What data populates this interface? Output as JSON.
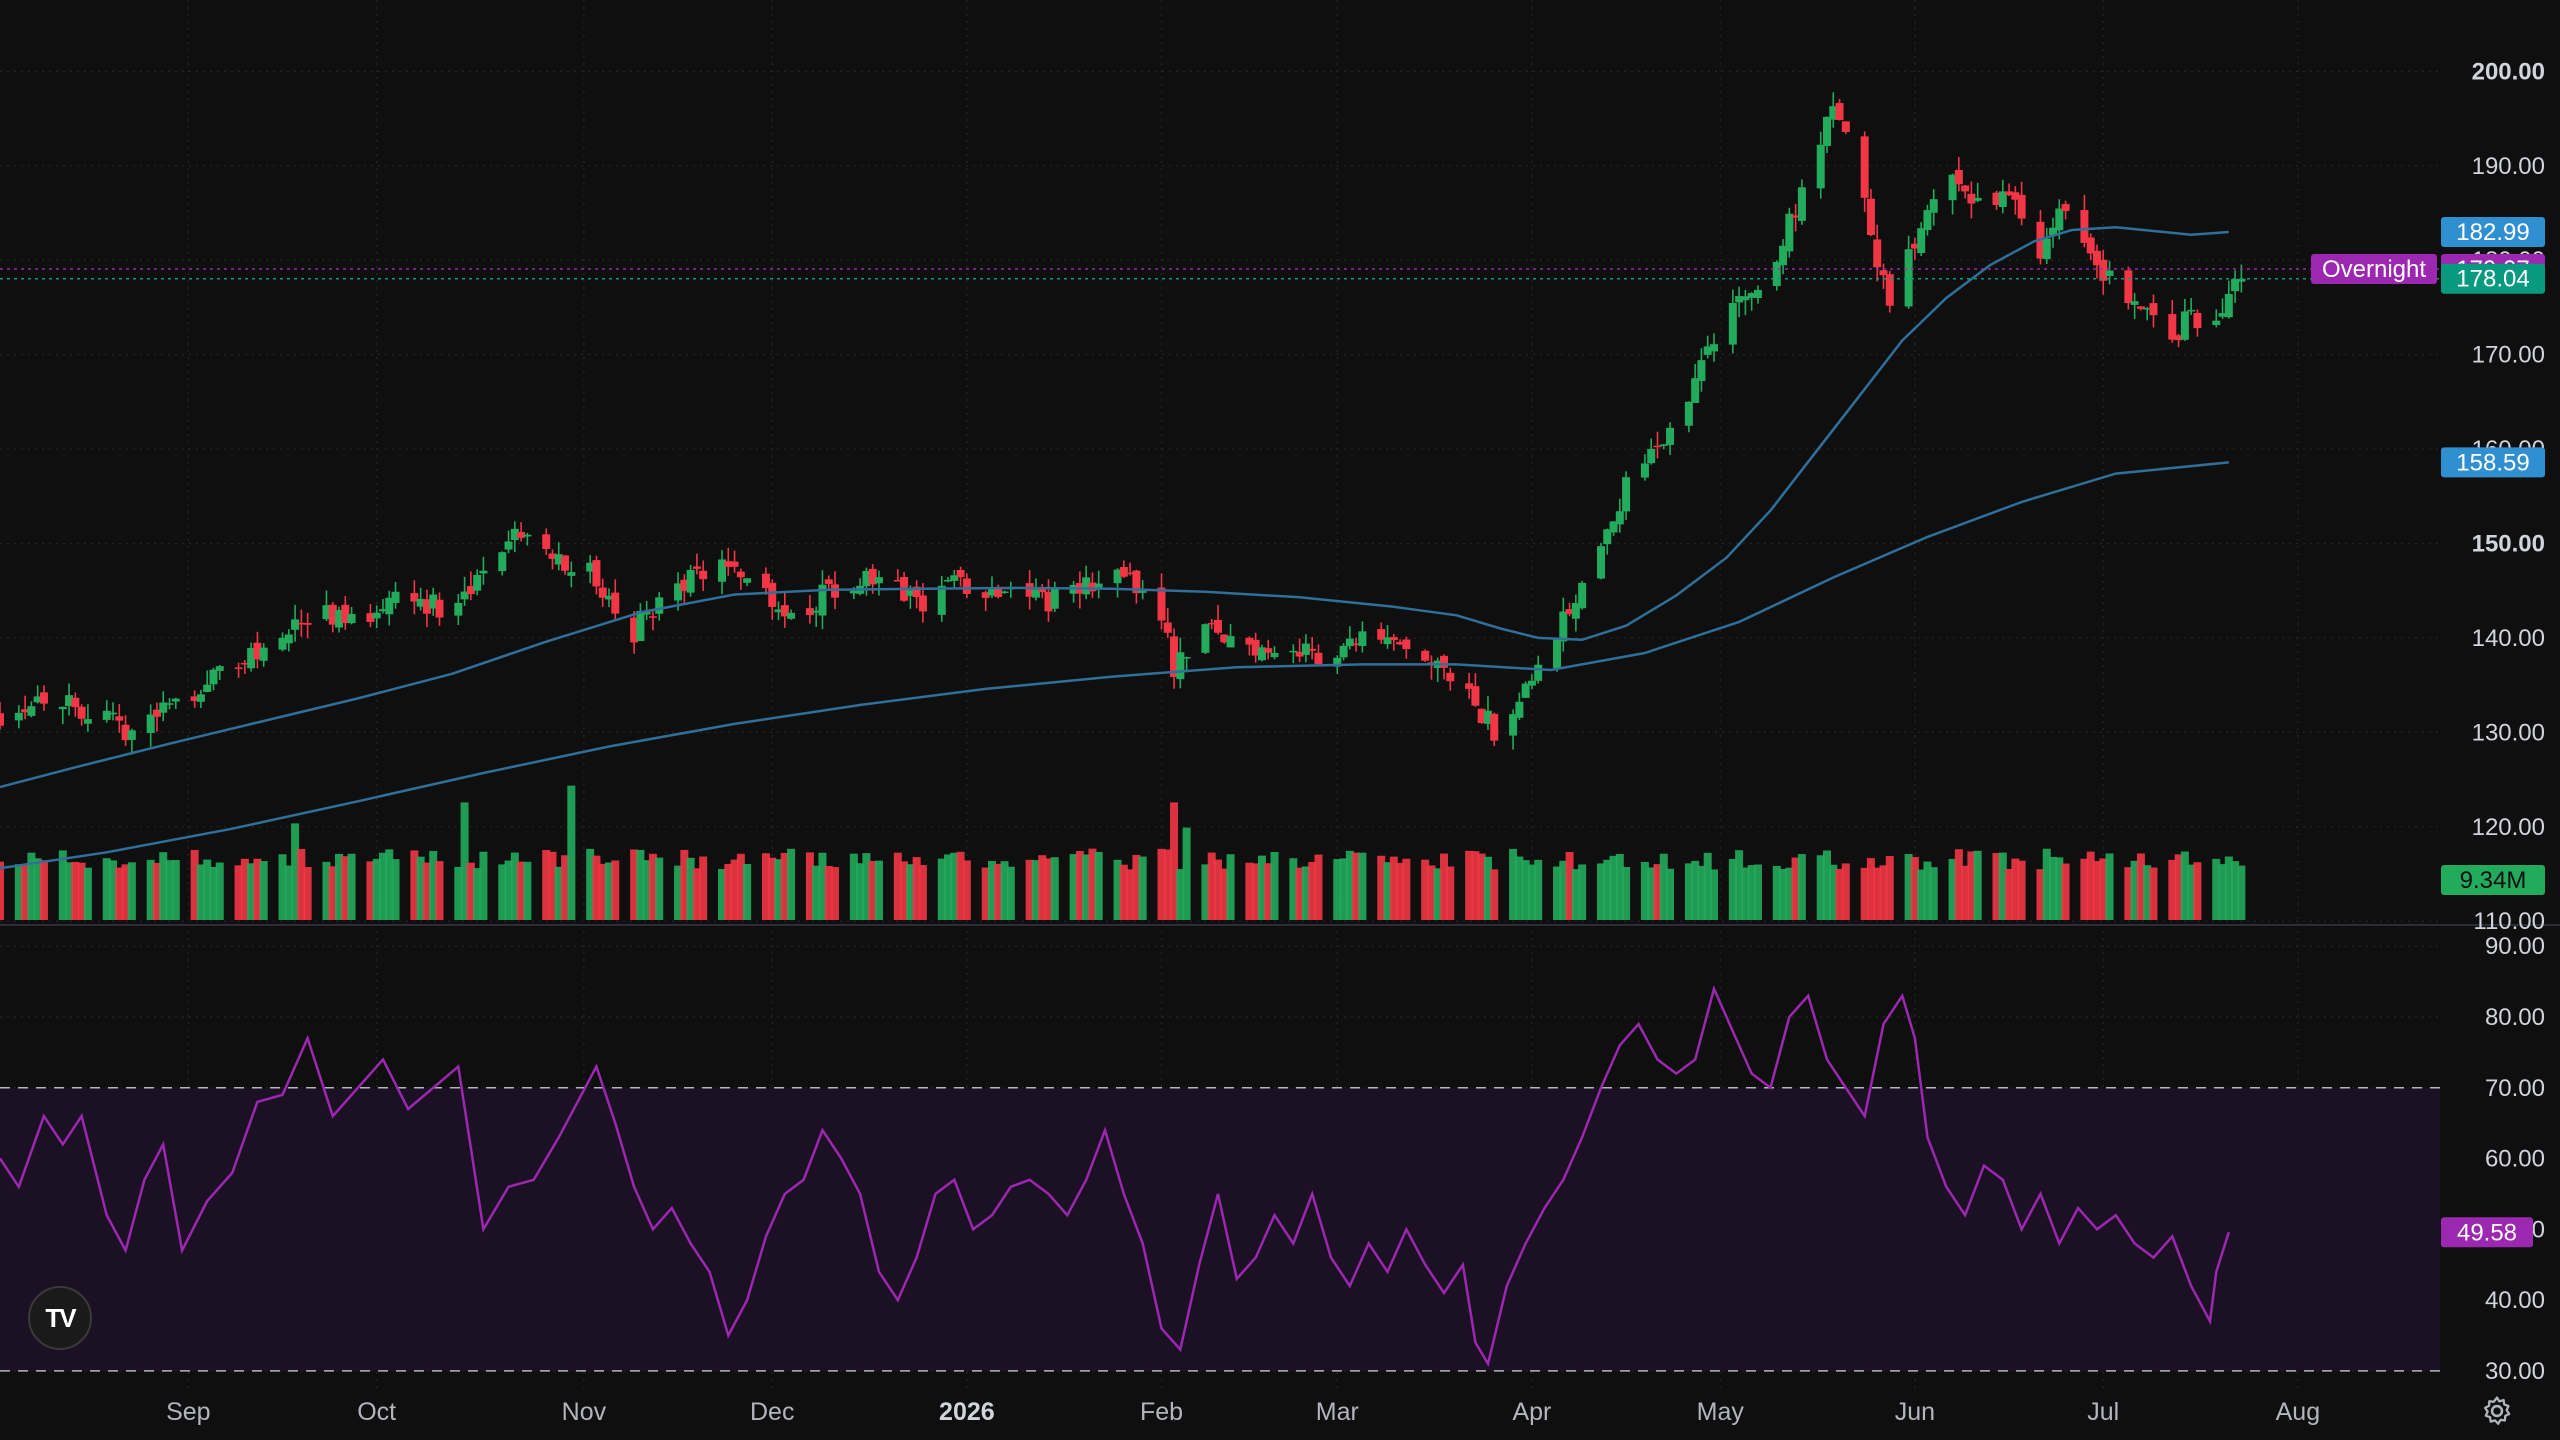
{
  "chart_data": {
    "type": "candlestick",
    "price_axis": {
      "ticks": [
        200,
        190,
        180,
        170,
        160,
        150,
        140,
        130,
        120,
        110
      ],
      "labels": [
        "200.00",
        "190.00",
        "180.00",
        "170.00",
        "160.00",
        "150.00",
        "140.00",
        "130.00",
        "120.00",
        "110.00"
      ],
      "bold": [
        true,
        false,
        false,
        false,
        false,
        true,
        false,
        false,
        false,
        false
      ],
      "range": [
        109.6,
        206.5
      ]
    },
    "rsi_axis": {
      "ticks": [
        90,
        80,
        70,
        60,
        50,
        40,
        30
      ],
      "labels": [
        "90.00",
        "80.00",
        "70.00",
        "60.00",
        "50.00",
        "40.00",
        "30.00"
      ],
      "range": [
        28,
        93
      ],
      "band": [
        30,
        70
      ]
    },
    "time_axis": {
      "labels": [
        {
          "text": "Sep",
          "bold": false,
          "day": 13
        },
        {
          "text": "Oct",
          "bold": false,
          "day": 43
        },
        {
          "text": "Nov",
          "bold": false,
          "day": 76
        },
        {
          "text": "Dec",
          "bold": false,
          "day": 106
        },
        {
          "text": "2026",
          "bold": true,
          "day": 137
        },
        {
          "text": "Feb",
          "bold": false,
          "day": 168
        },
        {
          "text": "Mar",
          "bold": false,
          "day": 196
        },
        {
          "text": "Apr",
          "bold": false,
          "day": 227
        },
        {
          "text": "May",
          "bold": false,
          "day": 257
        },
        {
          "text": "Jun",
          "bold": false,
          "day": 288
        },
        {
          "text": "Jul",
          "bold": false,
          "day": 318
        },
        {
          "text": "Aug",
          "bold": false,
          "day": 349
        }
      ],
      "range": [
        -17,
        371
      ]
    },
    "markers": {
      "ma50": {
        "text": "182.99",
        "value": 182.99,
        "color": "#2f8fd0"
      },
      "overnight_label": {
        "text": "Overnight",
        "color": "#9c27b0"
      },
      "overnight": {
        "text": "179.07",
        "value": 179.07,
        "color": "#9c27b0"
      },
      "last": {
        "text": "178.04",
        "value": 178.04,
        "color": "#089981"
      },
      "ma200": {
        "text": "158.59",
        "value": 158.59,
        "color": "#2f8fd0"
      },
      "volume": {
        "text": "9.34M",
        "color": "#22ab5c"
      },
      "rsi": {
        "text": "49.58",
        "value": 49.58,
        "color": "#9c27b0"
      }
    },
    "anchors": [
      [
        -17,
        132
      ],
      [
        -10,
        134
      ],
      [
        -5,
        133
      ],
      [
        0,
        131
      ],
      [
        5,
        130
      ],
      [
        10,
        133
      ],
      [
        15,
        135
      ],
      [
        20,
        137
      ],
      [
        25,
        139
      ],
      [
        30,
        141
      ],
      [
        35,
        143
      ],
      [
        40,
        141
      ],
      [
        45,
        145
      ],
      [
        50,
        144
      ],
      [
        55,
        143
      ],
      [
        60,
        146
      ],
      [
        63,
        150
      ],
      [
        68,
        152
      ],
      [
        73,
        148
      ],
      [
        77,
        147
      ],
      [
        80,
        144
      ],
      [
        83,
        138
      ],
      [
        85,
        142
      ],
      [
        90,
        145
      ],
      [
        95,
        147
      ],
      [
        100,
        148
      ],
      [
        105,
        145
      ],
      [
        110,
        142
      ],
      [
        115,
        145
      ],
      [
        120,
        146
      ],
      [
        125,
        145
      ],
      [
        130,
        144
      ],
      [
        135,
        146
      ],
      [
        140,
        145
      ],
      [
        145,
        146
      ],
      [
        150,
        144
      ],
      [
        155,
        145
      ],
      [
        160,
        147
      ],
      [
        165,
        145
      ],
      [
        168,
        143
      ],
      [
        170,
        137
      ],
      [
        174,
        141
      ],
      [
        178,
        140
      ],
      [
        183,
        139
      ],
      [
        188,
        139
      ],
      [
        193,
        138
      ],
      [
        198,
        140
      ],
      [
        203,
        139
      ],
      [
        208,
        138
      ],
      [
        213,
        136
      ],
      [
        218,
        133
      ],
      [
        221,
        130
      ],
      [
        224,
        133
      ],
      [
        228,
        138
      ],
      [
        233,
        143
      ],
      [
        238,
        151
      ],
      [
        243,
        157
      ],
      [
        248,
        161
      ],
      [
        252,
        166
      ],
      [
        256,
        172
      ],
      [
        260,
        176
      ],
      [
        264,
        177
      ],
      [
        268,
        184
      ],
      [
        272,
        190
      ],
      [
        275,
        196
      ],
      [
        278,
        193
      ],
      [
        281,
        182
      ],
      [
        284,
        176
      ],
      [
        287,
        180
      ],
      [
        290,
        186
      ],
      [
        293,
        191
      ],
      [
        296,
        188
      ],
      [
        299,
        184
      ],
      [
        302,
        188
      ],
      [
        305,
        184
      ],
      [
        308,
        180
      ],
      [
        311,
        186
      ],
      [
        314,
        182
      ],
      [
        317,
        180
      ],
      [
        320,
        177
      ],
      [
        323,
        176
      ],
      [
        326,
        175
      ],
      [
        329,
        172
      ],
      [
        332,
        174
      ],
      [
        335,
        171
      ],
      [
        336,
        174
      ],
      [
        338,
        176
      ],
      [
        340,
        178
      ]
    ],
    "ma50_points": [
      [
        -17,
        124.2
      ],
      [
        -5,
        126.3
      ],
      [
        10,
        128.8
      ],
      [
        25,
        131.2
      ],
      [
        40,
        133.6
      ],
      [
        55,
        136.2
      ],
      [
        70,
        139.6
      ],
      [
        85,
        142.7
      ],
      [
        100,
        144.6
      ],
      [
        115,
        145.1
      ],
      [
        130,
        145.2
      ],
      [
        145,
        145.3
      ],
      [
        160,
        145.2
      ],
      [
        175,
        144.9
      ],
      [
        190,
        144.3
      ],
      [
        205,
        143.3
      ],
      [
        215,
        142.4
      ],
      [
        222,
        141
      ],
      [
        228,
        140
      ],
      [
        235,
        139.8
      ],
      [
        242,
        141.3
      ],
      [
        250,
        144.5
      ],
      [
        258,
        148.5
      ],
      [
        265,
        153.5
      ],
      [
        272,
        159.5
      ],
      [
        279,
        165.5
      ],
      [
        286,
        171.5
      ],
      [
        293,
        176
      ],
      [
        300,
        179.5
      ],
      [
        307,
        182
      ],
      [
        313,
        183.2
      ],
      [
        320,
        183.5
      ],
      [
        326,
        183.1
      ],
      [
        332,
        182.7
      ],
      [
        338,
        182.99
      ]
    ],
    "ma200_points": [
      [
        -17,
        115.6
      ],
      [
        0,
        117.3
      ],
      [
        20,
        119.8
      ],
      [
        40,
        122.7
      ],
      [
        60,
        125.7
      ],
      [
        80,
        128.5
      ],
      [
        100,
        130.9
      ],
      [
        120,
        132.9
      ],
      [
        140,
        134.6
      ],
      [
        160,
        135.9
      ],
      [
        180,
        136.9
      ],
      [
        200,
        137.2
      ],
      [
        215,
        137.2
      ],
      [
        230,
        136.6
      ],
      [
        245,
        138.4
      ],
      [
        260,
        141.7
      ],
      [
        275,
        146.4
      ],
      [
        290,
        150.7
      ],
      [
        305,
        154.4
      ],
      [
        320,
        157.4
      ],
      [
        338,
        158.59
      ]
    ],
    "rsi_points": [
      [
        -17,
        60
      ],
      [
        -14,
        56
      ],
      [
        -10,
        66
      ],
      [
        -7,
        62
      ],
      [
        -4,
        66
      ],
      [
        0,
        52
      ],
      [
        3,
        47
      ],
      [
        6,
        57
      ],
      [
        9,
        62
      ],
      [
        12,
        47
      ],
      [
        16,
        54
      ],
      [
        20,
        58
      ],
      [
        24,
        68
      ],
      [
        28,
        69
      ],
      [
        32,
        77
      ],
      [
        36,
        66
      ],
      [
        40,
        70
      ],
      [
        44,
        74
      ],
      [
        48,
        67
      ],
      [
        52,
        70
      ],
      [
        56,
        73
      ],
      [
        60,
        50
      ],
      [
        64,
        56
      ],
      [
        68,
        57
      ],
      [
        72,
        63
      ],
      [
        75,
        68
      ],
      [
        78,
        73
      ],
      [
        81,
        65
      ],
      [
        84,
        56
      ],
      [
        87,
        50
      ],
      [
        90,
        53
      ],
      [
        93,
        48
      ],
      [
        96,
        44
      ],
      [
        99,
        35
      ],
      [
        102,
        40
      ],
      [
        105,
        49
      ],
      [
        108,
        55
      ],
      [
        111,
        57
      ],
      [
        114,
        64
      ],
      [
        117,
        60
      ],
      [
        120,
        55
      ],
      [
        123,
        44
      ],
      [
        126,
        40
      ],
      [
        129,
        46
      ],
      [
        132,
        55
      ],
      [
        135,
        57
      ],
      [
        138,
        50
      ],
      [
        141,
        52
      ],
      [
        144,
        56
      ],
      [
        147,
        57
      ],
      [
        150,
        55
      ],
      [
        153,
        52
      ],
      [
        156,
        57
      ],
      [
        159,
        64
      ],
      [
        162,
        55
      ],
      [
        165,
        48
      ],
      [
        168,
        36
      ],
      [
        171,
        33
      ],
      [
        174,
        45
      ],
      [
        177,
        55
      ],
      [
        180,
        43
      ],
      [
        183,
        46
      ],
      [
        186,
        52
      ],
      [
        189,
        48
      ],
      [
        192,
        55
      ],
      [
        195,
        46
      ],
      [
        198,
        42
      ],
      [
        201,
        48
      ],
      [
        204,
        44
      ],
      [
        207,
        50
      ],
      [
        210,
        45
      ],
      [
        213,
        41
      ],
      [
        216,
        45
      ],
      [
        218,
        34
      ],
      [
        220,
        31
      ],
      [
        223,
        42
      ],
      [
        226,
        48
      ],
      [
        229,
        53
      ],
      [
        232,
        57
      ],
      [
        235,
        63
      ],
      [
        238,
        70
      ],
      [
        241,
        76
      ],
      [
        244,
        79
      ],
      [
        247,
        74
      ],
      [
        250,
        72
      ],
      [
        253,
        74
      ],
      [
        256,
        84
      ],
      [
        259,
        78
      ],
      [
        262,
        72
      ],
      [
        265,
        70
      ],
      [
        268,
        80
      ],
      [
        271,
        83
      ],
      [
        274,
        74
      ],
      [
        277,
        70
      ],
      [
        280,
        66
      ],
      [
        283,
        79
      ],
      [
        286,
        83
      ],
      [
        288,
        77
      ],
      [
        290,
        63
      ],
      [
        293,
        56
      ],
      [
        296,
        52
      ],
      [
        299,
        59
      ],
      [
        302,
        57
      ],
      [
        305,
        50
      ],
      [
        308,
        55
      ],
      [
        311,
        48
      ],
      [
        314,
        53
      ],
      [
        317,
        50
      ],
      [
        320,
        52
      ],
      [
        323,
        48
      ],
      [
        326,
        46
      ],
      [
        329,
        49
      ],
      [
        332,
        42
      ],
      [
        335,
        37
      ],
      [
        336,
        44
      ],
      [
        338,
        49.58
      ]
    ],
    "volume_spikes": [
      [
        30,
        23
      ],
      [
        57,
        28
      ],
      [
        74,
        32
      ],
      [
        75,
        26
      ],
      [
        170,
        28
      ],
      [
        172,
        22
      ],
      [
        195,
        22
      ],
      [
        285,
        17
      ]
    ],
    "volume_base": 12
  }
}
